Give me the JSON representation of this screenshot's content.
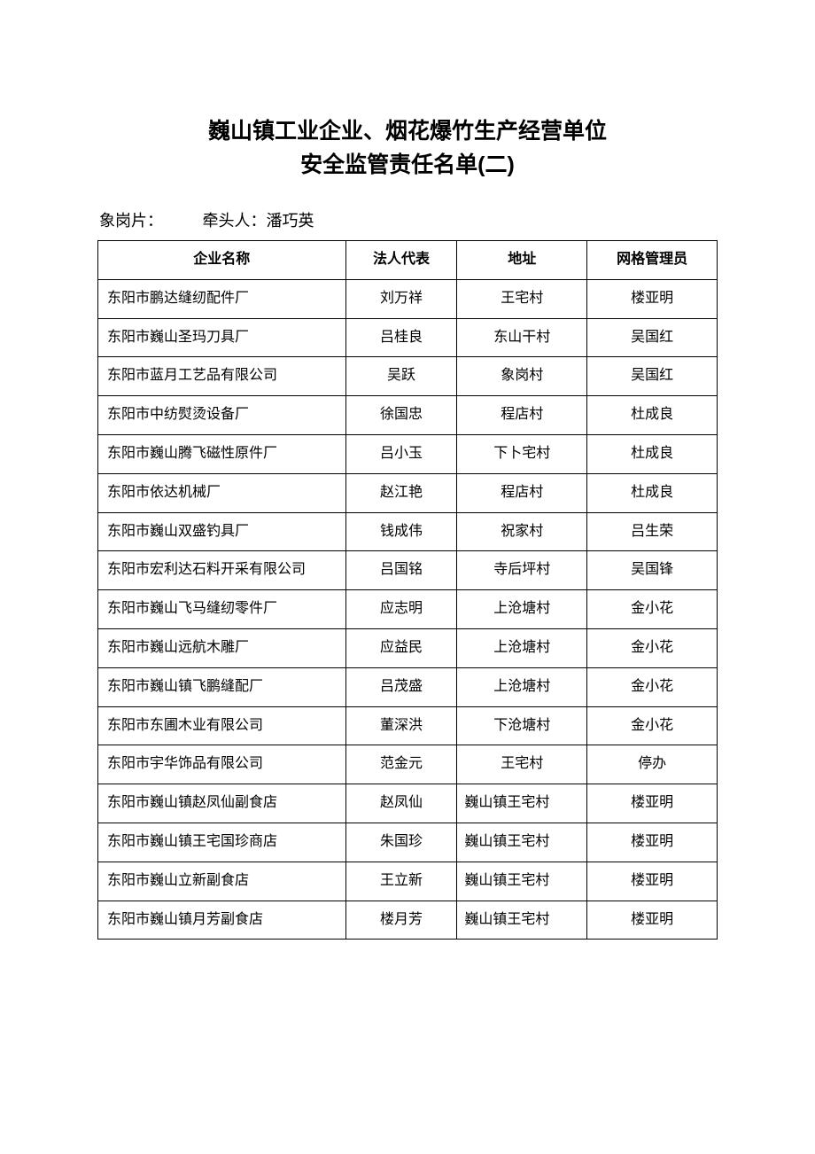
{
  "title_line1": "巍山镇工业企业、烟花爆竹生产经营单位",
  "title_line2": "安全监管责任名单(二)",
  "section_label": "象岗片：",
  "leader_prefix": "牵头人：",
  "leader_name": "潘巧英",
  "columns": {
    "company": "企业名称",
    "legal_rep": "法人代表",
    "address": "地址",
    "grid_admin": "网格管理员"
  },
  "rows": [
    {
      "company": "东阳市鹏达缝纫配件厂",
      "legal_rep": "刘万祥",
      "address": "王宅村",
      "grid_admin": "楼亚明"
    },
    {
      "company": "东阳市巍山圣玛刀具厂",
      "legal_rep": "吕桂良",
      "address": "东山干村",
      "grid_admin": "吴国红"
    },
    {
      "company": "东阳市蓝月工艺品有限公司",
      "legal_rep": "吴跃",
      "address": "象岗村",
      "grid_admin": "吴国红"
    },
    {
      "company": "东阳市中纺熨烫设备厂",
      "legal_rep": "徐国忠",
      "address": "程店村",
      "grid_admin": "杜成良"
    },
    {
      "company": "东阳市巍山腾飞磁性原件厂",
      "legal_rep": "吕小玉",
      "address": "下卜宅村",
      "grid_admin": "杜成良"
    },
    {
      "company": "东阳市依达机械厂",
      "legal_rep": "赵江艳",
      "address": "程店村",
      "grid_admin": "杜成良"
    },
    {
      "company": "东阳市巍山双盛钓具厂",
      "legal_rep": "钱成伟",
      "address": "祝家村",
      "grid_admin": "吕生荣"
    },
    {
      "company": "东阳市宏利达石料开采有限公司",
      "legal_rep": "吕国铭",
      "address": "寺后坪村",
      "grid_admin": "吴国锋"
    },
    {
      "company": "东阳市巍山飞马缝纫零件厂",
      "legal_rep": "应志明",
      "address": "上沧塘村",
      "grid_admin": "金小花"
    },
    {
      "company": "东阳市巍山远航木雕厂",
      "legal_rep": "应益民",
      "address": "上沧塘村",
      "grid_admin": "金小花"
    },
    {
      "company": "东阳市巍山镇飞鹏缝配厂",
      "legal_rep": "吕茂盛",
      "address": "上沧塘村",
      "grid_admin": "金小花"
    },
    {
      "company": "东阳市东圃木业有限公司",
      "legal_rep": "董深洪",
      "address": "下沧塘村",
      "grid_admin": "金小花"
    },
    {
      "company": "东阳市宇华饰品有限公司",
      "legal_rep": "范金元",
      "address": "王宅村",
      "grid_admin": "停办"
    },
    {
      "company": "东阳市巍山镇赵凤仙副食店",
      "legal_rep": "赵凤仙",
      "address": "巍山镇王宅村",
      "grid_admin": "楼亚明",
      "addr_wrap": true
    },
    {
      "company": "东阳市巍山镇王宅国珍商店",
      "legal_rep": "朱国珍",
      "address": "巍山镇王宅村",
      "grid_admin": "楼亚明",
      "addr_wrap": true
    },
    {
      "company": "东阳市巍山立新副食店",
      "legal_rep": "王立新",
      "address": "巍山镇王宅村",
      "grid_admin": "楼亚明",
      "addr_wrap": true
    },
    {
      "company": "东阳市巍山镇月芳副食店",
      "legal_rep": "楼月芳",
      "address": "巍山镇王宅村",
      "grid_admin": "楼亚明",
      "addr_wrap": true
    }
  ]
}
